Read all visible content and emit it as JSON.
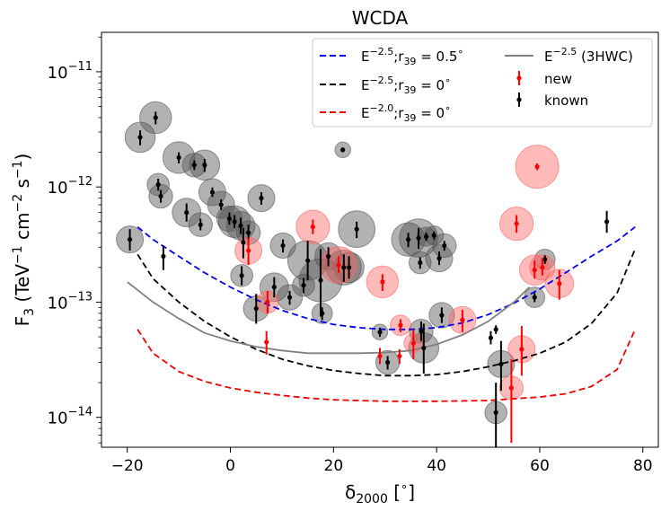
{
  "chart_data": {
    "type": "scatter",
    "title": "WCDA",
    "xlabel": "δ2000 [∘]",
    "ylabel": "F3 (TeV−1 cm−2 s−1)",
    "xlim": [
      -25,
      83
    ],
    "ylim": [
      5.5e-15,
      2.2e-11
    ],
    "yscale": "log",
    "x_ticks": [
      -20,
      0,
      20,
      40,
      60,
      80
    ],
    "x_tick_labels": [
      "−20",
      "0",
      "20",
      "40",
      "60",
      "80"
    ],
    "y_ticks": [
      1e-14,
      1e-13,
      1e-12,
      1e-11
    ],
    "y_tick_labels": [
      {
        "base": "10",
        "exp": "−14"
      },
      {
        "base": "10",
        "exp": "−13"
      },
      {
        "base": "10",
        "exp": "−12"
      },
      {
        "base": "10",
        "exp": "−11"
      }
    ],
    "legend": {
      "position": "top-right",
      "entries": [
        {
          "key": "blue",
          "label": "E−2.5;r39 = 0.5∘"
        },
        {
          "key": "black",
          "label": "E−2.5;r39 = 0∘"
        },
        {
          "key": "red",
          "label": "E−2.0;r39 = 0∘"
        },
        {
          "key": "gray",
          "label": "E−2.5 (3HWC)"
        },
        {
          "key": "new",
          "label": "new"
        },
        {
          "key": "known",
          "label": "known"
        }
      ]
    },
    "colors": {
      "blue": "#0000ee",
      "black": "#000000",
      "red": "#ee0000",
      "gray": "#808080",
      "new_marker": "#ff0000",
      "known_marker": "#000000",
      "new_circle": "#ff6666",
      "known_circle": "#555555"
    },
    "curves": [
      {
        "key": "blue",
        "style": "dashed",
        "points": [
          [
            -18,
            4.5e-13
          ],
          [
            -15,
            3.5e-13
          ],
          [
            -10,
            2.5e-13
          ],
          [
            -5,
            1.8e-13
          ],
          [
            0,
            1.35e-13
          ],
          [
            5,
            1.05e-13
          ],
          [
            10,
            8.5e-14
          ],
          [
            15,
            7.2e-14
          ],
          [
            20,
            6.4e-14
          ],
          [
            25,
            6e-14
          ],
          [
            30,
            5.8e-14
          ],
          [
            35,
            5.8e-14
          ],
          [
            40,
            6e-14
          ],
          [
            45,
            6.6e-14
          ],
          [
            50,
            7.8e-14
          ],
          [
            55,
            9.8e-14
          ],
          [
            60,
            1.3e-13
          ],
          [
            65,
            1.8e-13
          ],
          [
            70,
            2.5e-13
          ],
          [
            75,
            3.4e-13
          ],
          [
            78.5,
            4.5e-13
          ]
        ]
      },
      {
        "key": "black",
        "style": "dashed",
        "points": [
          [
            -18,
            2.6e-13
          ],
          [
            -15,
            1.6e-13
          ],
          [
            -10,
            1e-13
          ],
          [
            -5,
            6.8e-14
          ],
          [
            0,
            5e-14
          ],
          [
            5,
            3.9e-14
          ],
          [
            10,
            3.2e-14
          ],
          [
            15,
            2.8e-14
          ],
          [
            20,
            2.55e-14
          ],
          [
            25,
            2.4e-14
          ],
          [
            30,
            2.3e-14
          ],
          [
            35,
            2.3e-14
          ],
          [
            40,
            2.35e-14
          ],
          [
            45,
            2.5e-14
          ],
          [
            50,
            2.75e-14
          ],
          [
            55,
            3.1e-14
          ],
          [
            60,
            3.6e-14
          ],
          [
            65,
            4.5e-14
          ],
          [
            70,
            6.5e-14
          ],
          [
            75,
            1.2e-13
          ],
          [
            78.5,
            2.9e-13
          ]
        ]
      },
      {
        "key": "red",
        "style": "dashed",
        "points": [
          [
            -18,
            5.8e-14
          ],
          [
            -15,
            3.6e-14
          ],
          [
            -10,
            2.5e-14
          ],
          [
            -5,
            2.05e-14
          ],
          [
            0,
            1.8e-14
          ],
          [
            5,
            1.65e-14
          ],
          [
            10,
            1.55e-14
          ],
          [
            15,
            1.47e-14
          ],
          [
            20,
            1.42e-14
          ],
          [
            30,
            1.38e-14
          ],
          [
            40,
            1.38e-14
          ],
          [
            50,
            1.4e-14
          ],
          [
            55,
            1.45e-14
          ],
          [
            60,
            1.5e-14
          ],
          [
            65,
            1.6e-14
          ],
          [
            70,
            1.85e-14
          ],
          [
            75,
            2.6e-14
          ],
          [
            78.5,
            5.8e-14
          ]
        ]
      },
      {
        "key": "gray",
        "style": "solid",
        "points": [
          [
            -20,
            1.5e-13
          ],
          [
            -15,
            1e-13
          ],
          [
            -10,
            7.2e-14
          ],
          [
            -5,
            5.4e-14
          ],
          [
            0,
            4.6e-14
          ],
          [
            5,
            4.1e-14
          ],
          [
            10,
            3.8e-14
          ],
          [
            15,
            3.6e-14
          ],
          [
            20,
            3.6e-14
          ],
          [
            25,
            3.6e-14
          ],
          [
            30,
            3.65e-14
          ],
          [
            35,
            3.8e-14
          ],
          [
            40,
            4.3e-14
          ],
          [
            45,
            5.2e-14
          ],
          [
            50,
            6.8e-14
          ],
          [
            55,
            1e-13
          ],
          [
            58,
            1.35e-13
          ]
        ]
      }
    ],
    "new_sources": [
      {
        "x": 3.5,
        "y": 2.8e-13,
        "lo": 2.1e-13,
        "hi": 3.6e-13,
        "size": 1.0
      },
      {
        "x": 7.0,
        "y": 4.5e-14,
        "lo": 3.5e-14,
        "hi": 5.6e-14,
        "size": 0.0
      },
      {
        "x": 7.2,
        "y": 1e-13,
        "lo": 8e-14,
        "hi": 1.25e-13,
        "size": 0.7
      },
      {
        "x": 16.0,
        "y": 4.5e-13,
        "lo": 3.9e-13,
        "hi": 5.2e-13,
        "size": 1.4
      },
      {
        "x": 21.0,
        "y": 2.1e-13,
        "lo": 1.8e-13,
        "hi": 2.5e-13,
        "size": 1.6
      },
      {
        "x": 29.5,
        "y": 1.5e-13,
        "lo": 1.25e-13,
        "hi": 1.75e-13,
        "size": 1.3
      },
      {
        "x": 29.0,
        "y": 3.4e-14,
        "lo": 2.9e-14,
        "hi": 4e-14,
        "size": 0.0
      },
      {
        "x": 33.0,
        "y": 6.3e-14,
        "lo": 5.5e-14,
        "hi": 7.1e-14,
        "size": 0.6
      },
      {
        "x": 32.8,
        "y": 3.4e-14,
        "lo": 2.9e-14,
        "hi": 3.9e-14,
        "size": 0.0
      },
      {
        "x": 35.5,
        "y": 4.4e-14,
        "lo": 3.2e-14,
        "hi": 5.8e-14,
        "size": 0.5
      },
      {
        "x": 45.0,
        "y": 7e-14,
        "lo": 5.5e-14,
        "hi": 8.6e-14,
        "size": 1.0
      },
      {
        "x": 55.5,
        "y": 4.8e-13,
        "lo": 4e-13,
        "hi": 5.7e-13,
        "size": 1.4
      },
      {
        "x": 54.5,
        "y": 1.8e-14,
        "lo": 6e-15,
        "hi": 3.2e-14,
        "size": 0.8
      },
      {
        "x": 56.5,
        "y": 3.9e-14,
        "lo": 2.3e-14,
        "hi": 6.2e-14,
        "size": 1.0
      },
      {
        "x": 59.5,
        "y": 1.5e-12,
        "lo": 1.4e-12,
        "hi": 1.6e-12,
        "size": 2.0
      },
      {
        "x": 59.0,
        "y": 1.9e-13,
        "lo": 1.6e-13,
        "hi": 2.3e-13,
        "size": 1.2
      },
      {
        "x": 60.5,
        "y": 2e-13,
        "lo": 1.7e-13,
        "hi": 2.4e-13,
        "size": 0.9
      },
      {
        "x": 63.8,
        "y": 1.45e-13,
        "lo": 1.05e-13,
        "hi": 1.9e-13,
        "size": 1.1
      }
    ],
    "known_sources": [
      {
        "x": -19.5,
        "y": 3.5e-13,
        "lo": 2.8e-13,
        "hi": 4.3e-13,
        "size": 1.0
      },
      {
        "x": -17.5,
        "y": 2.7e-12,
        "lo": 2.3e-12,
        "hi": 3.1e-12,
        "size": 1.2
      },
      {
        "x": -14.5,
        "y": 4e-12,
        "lo": 3.5e-12,
        "hi": 4.5e-12,
        "size": 1.3
      },
      {
        "x": -14.0,
        "y": 1.05e-12,
        "lo": 9.3e-13,
        "hi": 1.18e-12,
        "size": 0.7
      },
      {
        "x": -13.5,
        "y": 8.3e-13,
        "lo": 7.3e-13,
        "hi": 9.4e-13,
        "size": 0.8
      },
      {
        "x": -13.0,
        "y": 2.5e-13,
        "lo": 1.9e-13,
        "hi": 3.1e-13,
        "size": 0.0
      },
      {
        "x": -10.0,
        "y": 1.8e-12,
        "lo": 1.6e-12,
        "hi": 2e-12,
        "size": 1.3
      },
      {
        "x": -8.5,
        "y": 6e-13,
        "lo": 5e-13,
        "hi": 7.2e-13,
        "size": 1.1
      },
      {
        "x": -7.0,
        "y": 1.55e-12,
        "lo": 1.4e-12,
        "hi": 1.7e-12,
        "size": 0.8
      },
      {
        "x": -5.0,
        "y": 1.55e-12,
        "lo": 1.35e-12,
        "hi": 1.75e-12,
        "size": 1.2
      },
      {
        "x": -5.8,
        "y": 4.7e-13,
        "lo": 4.2e-13,
        "hi": 5.3e-13,
        "size": 0.8
      },
      {
        "x": -3.5,
        "y": 9e-13,
        "lo": 8.2e-13,
        "hi": 9.9e-13,
        "size": 1.0
      },
      {
        "x": -1.8,
        "y": 7e-13,
        "lo": 6.3e-13,
        "hi": 7.8e-13,
        "size": 1.0
      },
      {
        "x": -0.2,
        "y": 5.3e-13,
        "lo": 4.7e-13,
        "hi": 6e-13,
        "size": 0.9
      },
      {
        "x": 0.8,
        "y": 5e-13,
        "lo": 4.4e-13,
        "hi": 5.7e-13,
        "size": 1.3
      },
      {
        "x": 2.0,
        "y": 4.6e-13,
        "lo": 3.9e-13,
        "hi": 5.4e-13,
        "size": 1.1
      },
      {
        "x": 2.2,
        "y": 1.7e-13,
        "lo": 1.4e-13,
        "hi": 2.05e-13,
        "size": 0.7
      },
      {
        "x": 2.5,
        "y": 3.3e-13,
        "lo": 2.4e-13,
        "hi": 4.4e-13,
        "size": 0.0
      },
      {
        "x": 3.5,
        "y": 4e-13,
        "lo": 3.4e-13,
        "hi": 4.7e-13,
        "size": 0.8
      },
      {
        "x": 5.0,
        "y": 8.8e-14,
        "lo": 6.5e-14,
        "hi": 1.18e-13,
        "size": 0.9
      },
      {
        "x": 6.0,
        "y": 8e-13,
        "lo": 7e-13,
        "hi": 9e-13,
        "size": 1.0
      },
      {
        "x": 8.5,
        "y": 1.35e-13,
        "lo": 1.1e-13,
        "hi": 1.65e-13,
        "size": 1.1
      },
      {
        "x": 10.2,
        "y": 3.1e-13,
        "lo": 2.7e-13,
        "hi": 3.5e-13,
        "size": 0.9
      },
      {
        "x": 11.5,
        "y": 1.1e-13,
        "lo": 9.5e-14,
        "hi": 1.25e-13,
        "size": 0.9
      },
      {
        "x": 14.2,
        "y": 1.4e-13,
        "lo": 1.2e-13,
        "hi": 1.62e-13,
        "size": 0.7
      },
      {
        "x": 15.0,
        "y": 2.3e-13,
        "lo": 1.55e-13,
        "hi": 3.4e-13,
        "size": 1.8
      },
      {
        "x": 17.5,
        "y": 1.55e-13,
        "lo": 7.5e-14,
        "hi": 2.9e-13,
        "size": 2.0
      },
      {
        "x": 17.8,
        "y": 8e-14,
        "lo": 7e-14,
        "hi": 9e-14,
        "size": 0.6
      },
      {
        "x": 19.0,
        "y": 2.5e-13,
        "lo": 2.05e-13,
        "hi": 3e-13,
        "size": 1.0
      },
      {
        "x": 21.8,
        "y": 2.1e-12,
        "lo": 2e-12,
        "hi": 2.2e-12,
        "size": 0.3
      },
      {
        "x": 22.0,
        "y": 2e-13,
        "lo": 1.5e-13,
        "hi": 2.6e-13,
        "size": 1.5
      },
      {
        "x": 23.0,
        "y": 2e-13,
        "lo": 1.6e-13,
        "hi": 2.5e-13,
        "size": 1.2
      },
      {
        "x": 24.5,
        "y": 4.3e-13,
        "lo": 3.6e-13,
        "hi": 5e-13,
        "size": 1.6
      },
      {
        "x": 29.0,
        "y": 5.5e-14,
        "lo": 5e-14,
        "hi": 6e-14,
        "size": 0.3
      },
      {
        "x": 30.5,
        "y": 3e-14,
        "lo": 2.6e-14,
        "hi": 3.4e-14,
        "size": 0.8
      },
      {
        "x": 34.5,
        "y": 3.5e-13,
        "lo": 3e-13,
        "hi": 4e-13,
        "size": 1.4
      },
      {
        "x": 36.5,
        "y": 3.6e-13,
        "lo": 2.9e-13,
        "hi": 4.4e-13,
        "size": 1.7
      },
      {
        "x": 36.8,
        "y": 2.2e-13,
        "lo": 1.95e-13,
        "hi": 2.45e-13,
        "size": 0.7
      },
      {
        "x": 37.0,
        "y": 5.6e-14,
        "lo": 4.6e-14,
        "hi": 6.8e-14,
        "size": 0.8
      },
      {
        "x": 37.5,
        "y": 4e-14,
        "lo": 2.4e-14,
        "hi": 6.5e-14,
        "size": 1.2
      },
      {
        "x": 38.0,
        "y": 3.7e-13,
        "lo": 3.4e-13,
        "hi": 4e-13,
        "size": 0.5
      },
      {
        "x": 39.5,
        "y": 3.8e-13,
        "lo": 3.5e-13,
        "hi": 4.1e-13,
        "size": 0.5
      },
      {
        "x": 40.5,
        "y": 2.4e-13,
        "lo": 2.1e-13,
        "hi": 2.75e-13,
        "size": 1.0
      },
      {
        "x": 41.5,
        "y": 3.1e-13,
        "lo": 2.8e-13,
        "hi": 3.4e-13,
        "size": 0.8
      },
      {
        "x": 41.0,
        "y": 7.7e-14,
        "lo": 6.6e-14,
        "hi": 9e-14,
        "size": 0.9
      },
      {
        "x": 50.5,
        "y": 4.9e-14,
        "lo": 4.3e-14,
        "hi": 5.6e-14,
        "size": 0.0
      },
      {
        "x": 51.5,
        "y": 5.8e-14,
        "lo": 5.3e-14,
        "hi": 6.3e-14,
        "size": 0.0
      },
      {
        "x": 51.5,
        "y": 1.1e-14,
        "lo": 5.5e-15,
        "hi": 2e-14,
        "size": 0.7
      },
      {
        "x": 52.5,
        "y": 2.9e-14,
        "lo": 1.7e-14,
        "hi": 4.6e-14,
        "size": 1.0
      },
      {
        "x": 59.0,
        "y": 1.1e-13,
        "lo": 1e-13,
        "hi": 1.2e-13,
        "size": 0.6
      },
      {
        "x": 61.0,
        "y": 2.35e-13,
        "lo": 2.15e-13,
        "hi": 2.55e-13,
        "size": 0.6
      },
      {
        "x": 73.0,
        "y": 5e-13,
        "lo": 4e-13,
        "hi": 6.2e-13,
        "size": 0.0
      }
    ]
  }
}
